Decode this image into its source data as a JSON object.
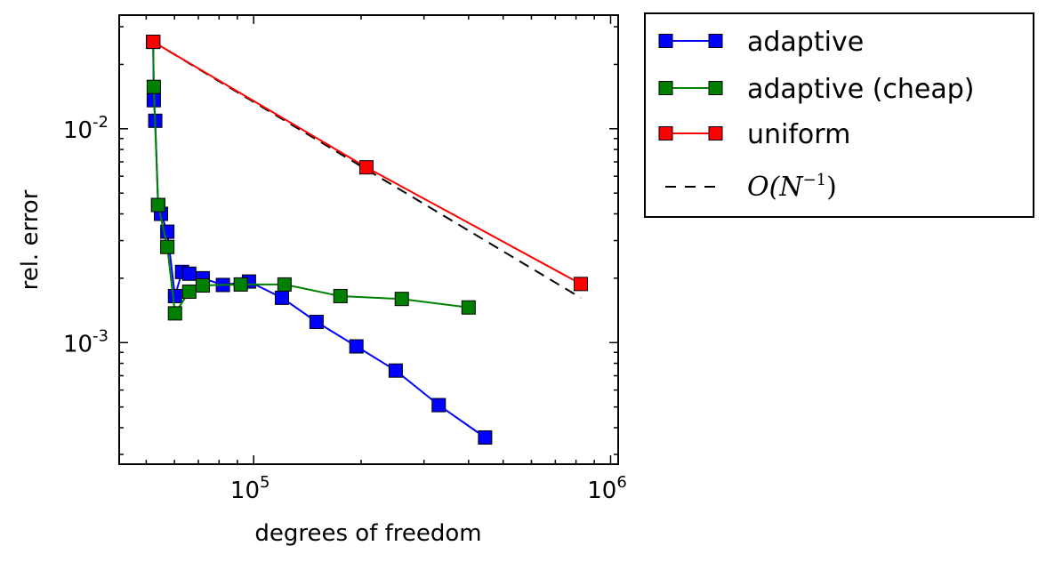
{
  "chart_data": {
    "type": "line",
    "xscale": "log",
    "yscale": "log",
    "xlabel": "degrees of freedom",
    "ylabel": "rel. error",
    "xlim": [
      42000,
      1050000
    ],
    "ylim": [
      0.00027,
      0.034
    ],
    "xticks": [
      {
        "value": 100000,
        "base": "10",
        "exp": "5"
      },
      {
        "value": 1000000,
        "base": "10",
        "exp": "6"
      }
    ],
    "yticks": [
      {
        "value": 0.001,
        "base": "10",
        "exp": "-3"
      },
      {
        "value": 0.01,
        "base": "10",
        "exp": "-2"
      }
    ],
    "series": [
      {
        "name": "adaptive",
        "color": "#0000ff",
        "marker": "square",
        "line": "solid",
        "x": [
          52300,
          52500,
          53000,
          54000,
          55000,
          57300,
          60200,
          63000,
          66000,
          72000,
          82000,
          97000,
          120000,
          150000,
          194000,
          250000,
          330000,
          445000
        ],
        "y": [
          0.0255,
          0.0136,
          0.0109,
          0.0044,
          0.004,
          0.0033,
          0.00165,
          0.00214,
          0.0021,
          0.002,
          0.00186,
          0.00193,
          0.00162,
          0.00125,
          0.00096,
          0.00074,
          0.00051,
          0.00036
        ]
      },
      {
        "name": "adaptive (cheap)",
        "color": "#008000",
        "marker": "square",
        "line": "solid",
        "x": [
          52300,
          52500,
          54000,
          57300,
          60200,
          66000,
          72000,
          92000,
          122000,
          175000,
          260000,
          400000
        ],
        "y": [
          0.0255,
          0.0157,
          0.0044,
          0.0028,
          0.00137,
          0.00173,
          0.00185,
          0.00187,
          0.00187,
          0.00165,
          0.0016,
          0.00146
        ]
      },
      {
        "name": "uniform",
        "color": "#ff0000",
        "marker": "square",
        "line": "solid",
        "x": [
          52300,
          207000,
          825000
        ],
        "y": [
          0.0255,
          0.0066,
          0.00188
        ]
      },
      {
        "name": "O(N^-1)",
        "color": "#000000",
        "marker": "none",
        "line": "dashed",
        "x": [
          52300,
          825000
        ],
        "y": [
          0.0255,
          0.00162
        ]
      }
    ],
    "legend": {
      "placement": "outside-right-top",
      "entries": [
        {
          "label": "adaptive",
          "color": "#0000ff",
          "marker": "square",
          "line": "solid"
        },
        {
          "label": "adaptive (cheap)",
          "color": "#008000",
          "marker": "square",
          "line": "solid"
        },
        {
          "label": "uniform",
          "color": "#ff0000",
          "marker": "square",
          "line": "solid"
        },
        {
          "label": "O(N",
          "sup": "−1",
          "close": ")",
          "color": "#000000",
          "marker": "none",
          "line": "dashed",
          "math": true
        }
      ]
    }
  }
}
